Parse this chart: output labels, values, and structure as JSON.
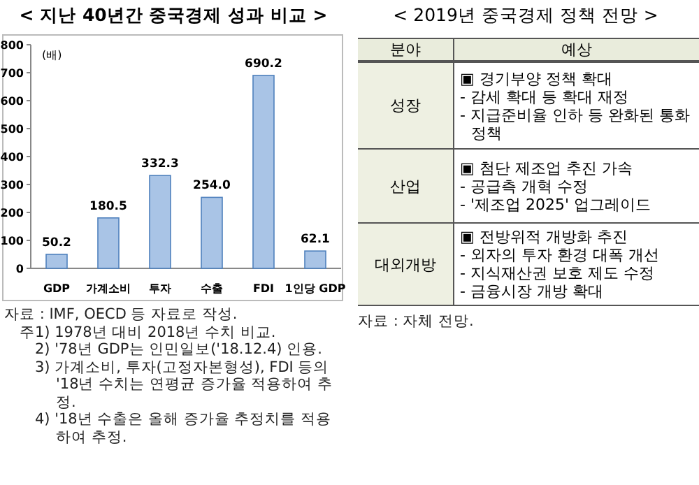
{
  "chart_data": [
    {
      "type": "bar",
      "title": "< 지난 40년간 중국경제 성과 비교 >",
      "ylabel": "(배)",
      "categories": [
        "GDP",
        "가계소비",
        "투자",
        "수출",
        "FDI",
        "1인당 GDP"
      ],
      "values": [
        50.2,
        180.5,
        332.3,
        254.0,
        690.2,
        62.1
      ],
      "value_labels": [
        "50.2",
        "180.5",
        "332.3",
        "254.0",
        "690.2",
        "62.1"
      ],
      "color": "#a9c4e6",
      "ylim": [
        0,
        800
      ],
      "yticks": [
        0,
        100,
        200,
        300,
        400,
        500,
        600,
        700,
        800
      ],
      "annotations": [
        "자료 : IMF, OECD 등 자료로 작성.",
        "주1) 1978년 대비 2018년 수치 비교.",
        "2) '78년 GDP는 인민일보('18.12.4) 인용.",
        "3) 가계소비, 투자(고정자본형성), FDI 등의 '18년 수치는 연평균 증가율 적용하여 추정.",
        "4) '18년 수출은 올해 증가율 추정치를 적용하여 추정."
      ]
    },
    {
      "type": "other",
      "title": "< 2019년 중국경제 정책 전망 >",
      "categories": [
        "분야",
        "예상"
      ],
      "y_categories": [
        "성장",
        "산업",
        "대외개방"
      ],
      "cell_labels": [
        [
          "▣ 경기부양 정책 확대",
          "- 감세 확대 등 확대 재정",
          "- 지급준비율 인하 등 완화된 통화정책"
        ],
        [
          "▣ 첨단 제조업 추진 가속",
          "- 공급측 개혁 수정",
          "- '제조업 2025' 업그레이드"
        ],
        [
          "▣ 전방위적 개방화 추진",
          "- 외자의 투자 환경 대폭 개선",
          "- 지식재산권 보호 제도 수정",
          "- 금융시장 개방 확대"
        ]
      ],
      "annotations": [
        "자료 : 자체 전망."
      ]
    }
  ]
}
